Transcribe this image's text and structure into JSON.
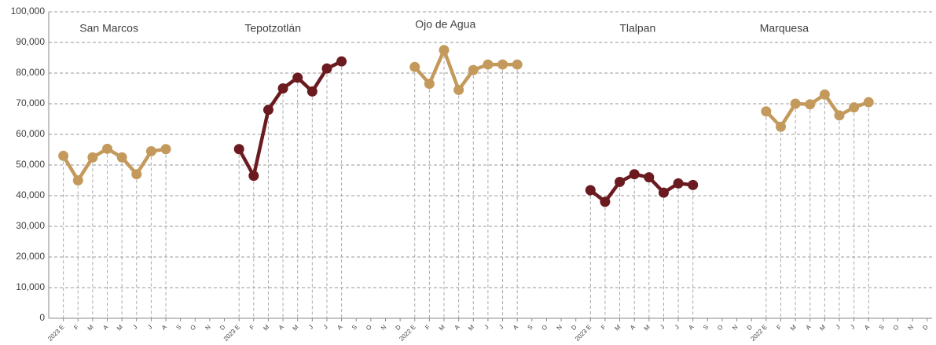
{
  "chart_data": {
    "type": "line",
    "categories": [
      "2023 E",
      "F",
      "M",
      "A",
      "M",
      "J",
      "J",
      "A",
      "S",
      "O",
      "N",
      "D",
      "2023 E",
      "F",
      "M",
      "A",
      "M",
      "J",
      "J",
      "A",
      "S",
      "O",
      "N",
      "D",
      "2022 E",
      "F",
      "M",
      "A",
      "M",
      "J",
      "J",
      "A",
      "S",
      "O",
      "N",
      "D",
      "2023 E",
      "F",
      "M",
      "A",
      "M",
      "J",
      "J",
      "A",
      "S",
      "O",
      "N",
      "D",
      "2022 E",
      "F",
      "M",
      "A",
      "M",
      "J",
      "J",
      "A",
      "S",
      "O",
      "N",
      "D"
    ],
    "series": [
      {
        "name": "San Marcos",
        "color": "#c49a5c",
        "values": [
          53000,
          45000,
          52500,
          55300,
          52500,
          47000,
          54500,
          55200,
          null,
          null,
          null,
          null,
          null,
          null,
          null,
          null,
          null,
          null,
          null,
          null,
          null,
          null,
          null,
          null,
          null,
          null,
          null,
          null,
          null,
          null,
          null,
          null,
          null,
          null,
          null,
          null,
          null,
          null,
          null,
          null,
          null,
          null,
          null,
          null,
          null,
          null,
          null,
          null,
          null,
          null,
          null,
          null,
          null,
          null,
          null,
          null,
          null,
          null,
          null,
          null
        ]
      },
      {
        "name": "Tepotzotlán",
        "color": "#6b1a1f",
        "values": [
          null,
          null,
          null,
          null,
          null,
          null,
          null,
          null,
          null,
          null,
          null,
          null,
          55200,
          46500,
          68000,
          75000,
          78500,
          74000,
          81500,
          83800,
          null,
          null,
          null,
          null,
          null,
          null,
          null,
          null,
          null,
          null,
          null,
          null,
          null,
          null,
          null,
          null,
          null,
          null,
          null,
          null,
          null,
          null,
          null,
          null,
          null,
          null,
          null,
          null,
          null,
          null,
          null,
          null,
          null,
          null,
          null,
          null,
          null,
          null,
          null,
          null
        ]
      },
      {
        "name": "Ojo de Agua",
        "color": "#c49a5c",
        "values": [
          null,
          null,
          null,
          null,
          null,
          null,
          null,
          null,
          null,
          null,
          null,
          null,
          null,
          null,
          null,
          null,
          null,
          null,
          null,
          null,
          null,
          null,
          null,
          null,
          82000,
          76500,
          87500,
          74500,
          81000,
          82800,
          82800,
          82800,
          null,
          null,
          null,
          null,
          null,
          null,
          null,
          null,
          null,
          null,
          null,
          null,
          null,
          null,
          null,
          null,
          null,
          null,
          null,
          null,
          null,
          null,
          null,
          null,
          null,
          null,
          null,
          null
        ]
      },
      {
        "name": "Tlalpan",
        "color": "#6b1a1f",
        "values": [
          null,
          null,
          null,
          null,
          null,
          null,
          null,
          null,
          null,
          null,
          null,
          null,
          null,
          null,
          null,
          null,
          null,
          null,
          null,
          null,
          null,
          null,
          null,
          null,
          null,
          null,
          null,
          null,
          null,
          null,
          null,
          null,
          null,
          null,
          null,
          null,
          41800,
          38000,
          44500,
          47000,
          46000,
          41000,
          44000,
          43500,
          null,
          null,
          null,
          null,
          null,
          null,
          null,
          null,
          null,
          null,
          null,
          null,
          null,
          null,
          null,
          null
        ]
      },
      {
        "name": "Marquesa",
        "color": "#c49a5c",
        "values": [
          null,
          null,
          null,
          null,
          null,
          null,
          null,
          null,
          null,
          null,
          null,
          null,
          null,
          null,
          null,
          null,
          null,
          null,
          null,
          null,
          null,
          null,
          null,
          null,
          null,
          null,
          null,
          null,
          null,
          null,
          null,
          null,
          null,
          null,
          null,
          null,
          null,
          null,
          null,
          null,
          null,
          null,
          null,
          null,
          null,
          null,
          null,
          null,
          67500,
          62500,
          70000,
          69800,
          73000,
          66200,
          68800,
          70500,
          null,
          null,
          null,
          null
        ]
      }
    ],
    "ylim": [
      0,
      100000
    ],
    "yticks": [
      0,
      {
        "value": 10000,
        "label": "10,000"
      },
      {
        "value": 20000,
        "label": "20,000"
      },
      {
        "value": 30000,
        "label": "30,000"
      },
      {
        "value": 40000,
        "label": "40,000"
      },
      {
        "value": 50000,
        "label": "50,000"
      },
      {
        "value": 60000,
        "label": "60,000"
      },
      {
        "value": 70000,
        "label": "70,000"
      },
      {
        "value": 80000,
        "label": "80,000"
      },
      {
        "value": 90000,
        "label": "90,000"
      },
      {
        "value": 100000,
        "label": "100,000"
      }
    ],
    "grid": true
  }
}
